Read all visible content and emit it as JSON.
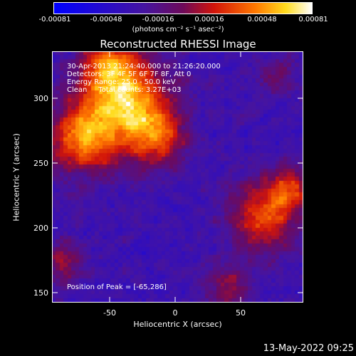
{
  "colorbar": {
    "ticks": [
      "-0.00081",
      "-0.00048",
      "-0.00016",
      "0.00016",
      "0.00048",
      "0.00081"
    ],
    "units": "(photons cm⁻² s⁻¹ asec⁻²)"
  },
  "title": "Reconstructed RHESSI Image",
  "annotation": {
    "time": "30-Apr-2013 21:24:40.000 to 21:26:20.000",
    "detectors": "Detectors: 3F 4F 5F 6F 7F 8F, Att 0",
    "energy": "Energy Range: 25.0 - 50.0 keV",
    "clean": "Clean     Total counts: 3.27E+03",
    "peak": "Position of Peak = [-65,286]"
  },
  "axes": {
    "xlabel": "Heliocentric X (arcsec)",
    "ylabel": "Heliocentric Y (arcsec)",
    "xticks": [
      "-50",
      "0",
      "50"
    ],
    "yticks": [
      "150",
      "200",
      "250",
      "300"
    ]
  },
  "footer": {
    "date": "13-May-2022 09:25"
  }
}
